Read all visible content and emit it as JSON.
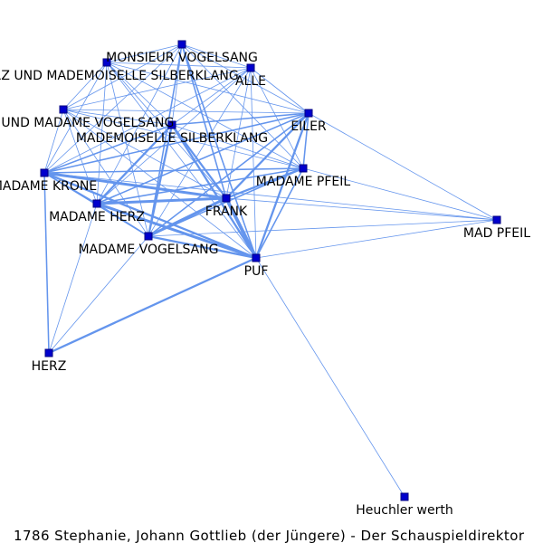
{
  "colors": {
    "edge": "#6495ed",
    "node_fill": "#0000cd",
    "node_stroke": "#000080",
    "background": "#ffffff"
  },
  "caption": "1786 Stephanie, Johann Gottlieb (der Jüngere) - Der Schauspieldirektor",
  "nodes": [
    {
      "id": "monsieur_vogelsang",
      "label": "MONSIEUR VOGELSANG"
    },
    {
      "id": "herz_silberklang",
      "label": "HERZ UND MADEMOISELLE SILBERKLANG"
    },
    {
      "id": "alle",
      "label": "ALLE"
    },
    {
      "id": "krone_vogelsang",
      "label": "KRONE UND MADAME VOGELSANG"
    },
    {
      "id": "mlle_silberklang",
      "label": "MADEMOISELLE SILBERKLANG"
    },
    {
      "id": "eiler",
      "label": "EILER"
    },
    {
      "id": "madame_krone",
      "label": "MADAME KRONE"
    },
    {
      "id": "madame_pfeil",
      "label": "MADAME PFEIL"
    },
    {
      "id": "frank",
      "label": "FRANK"
    },
    {
      "id": "madame_herz",
      "label": "MADAME HERZ"
    },
    {
      "id": "mad_pfeil",
      "label": "MAD PFEIL"
    },
    {
      "id": "madame_vogelsang",
      "label": "MADAME VOGELSANG"
    },
    {
      "id": "puf",
      "label": "PUF"
    },
    {
      "id": "herz",
      "label": "HERZ"
    },
    {
      "id": "heuchler",
      "label": "Heuchler werth"
    }
  ],
  "edges": [
    [
      "frank",
      "puf",
      5
    ],
    [
      "frank",
      "madame_krone",
      4
    ],
    [
      "frank",
      "madame_herz",
      4
    ],
    [
      "frank",
      "madame_vogelsang",
      4
    ],
    [
      "frank",
      "eiler",
      3
    ],
    [
      "frank",
      "mlle_silberklang",
      3
    ],
    [
      "frank",
      "madame_pfeil",
      3
    ],
    [
      "frank",
      "monsieur_vogelsang",
      2
    ],
    [
      "frank",
      "alle",
      1
    ],
    [
      "frank",
      "herz_silberklang",
      1
    ],
    [
      "frank",
      "krone_vogelsang",
      1
    ],
    [
      "frank",
      "mad_pfeil",
      1
    ],
    [
      "puf",
      "madame_herz",
      4
    ],
    [
      "puf",
      "eiler",
      3
    ],
    [
      "puf",
      "mlle_silberklang",
      3
    ],
    [
      "puf",
      "madame_vogelsang",
      3
    ],
    [
      "puf",
      "herz",
      3
    ],
    [
      "puf",
      "madame_krone",
      3
    ],
    [
      "puf",
      "madame_pfeil",
      2
    ],
    [
      "puf",
      "monsieur_vogelsang",
      2
    ],
    [
      "puf",
      "alle",
      1
    ],
    [
      "puf",
      "herz_silberklang",
      1
    ],
    [
      "puf",
      "krone_vogelsang",
      1
    ],
    [
      "puf",
      "mad_pfeil",
      1
    ],
    [
      "puf",
      "heuchler",
      1
    ],
    [
      "eiler",
      "madame_krone",
      2
    ],
    [
      "eiler",
      "madame_herz",
      2
    ],
    [
      "eiler",
      "madame_vogelsang",
      2
    ],
    [
      "eiler",
      "mlle_silberklang",
      2
    ],
    [
      "eiler",
      "madame_pfeil",
      2
    ],
    [
      "eiler",
      "mad_pfeil",
      1
    ],
    [
      "eiler",
      "monsieur_vogelsang",
      1
    ],
    [
      "eiler",
      "alle",
      1
    ],
    [
      "eiler",
      "herz_silberklang",
      1
    ],
    [
      "eiler",
      "krone_vogelsang",
      1
    ],
    [
      "mlle_silberklang",
      "madame_herz",
      3
    ],
    [
      "mlle_silberklang",
      "madame_vogelsang",
      3
    ],
    [
      "mlle_silberklang",
      "madame_krone",
      2
    ],
    [
      "mlle_silberklang",
      "madame_pfeil",
      1
    ],
    [
      "mlle_silberklang",
      "monsieur_vogelsang",
      1
    ],
    [
      "mlle_silberklang",
      "alle",
      1
    ],
    [
      "mlle_silberklang",
      "herz_silberklang",
      1
    ],
    [
      "mlle_silberklang",
      "krone_vogelsang",
      1
    ],
    [
      "madame_krone",
      "madame_herz",
      2
    ],
    [
      "madame_krone",
      "madame_vogelsang",
      2
    ],
    [
      "madame_krone",
      "madame_pfeil",
      2
    ],
    [
      "madame_krone",
      "herz",
      2
    ],
    [
      "madame_krone",
      "monsieur_vogelsang",
      1
    ],
    [
      "madame_krone",
      "alle",
      1
    ],
    [
      "madame_krone",
      "herz_silberklang",
      1
    ],
    [
      "madame_krone",
      "krone_vogelsang",
      1
    ],
    [
      "madame_krone",
      "mad_pfeil",
      1
    ],
    [
      "madame_herz",
      "madame_vogelsang",
      2
    ],
    [
      "madame_herz",
      "madame_pfeil",
      2
    ],
    [
      "madame_herz",
      "herz",
      1
    ],
    [
      "madame_herz",
      "monsieur_vogelsang",
      1
    ],
    [
      "madame_herz",
      "alle",
      1
    ],
    [
      "madame_herz",
      "herz_silberklang",
      1
    ],
    [
      "madame_herz",
      "krone_vogelsang",
      1
    ],
    [
      "madame_vogelsang",
      "madame_pfeil",
      2
    ],
    [
      "madame_vogelsang",
      "herz",
      1
    ],
    [
      "madame_vogelsang",
      "monsieur_vogelsang",
      2
    ],
    [
      "madame_vogelsang",
      "alle",
      1
    ],
    [
      "madame_vogelsang",
      "herz_silberklang",
      1
    ],
    [
      "madame_vogelsang",
      "krone_vogelsang",
      1
    ],
    [
      "madame_vogelsang",
      "mad_pfeil",
      1
    ],
    [
      "madame_pfeil",
      "monsieur_vogelsang",
      1
    ],
    [
      "madame_pfeil",
      "alle",
      1
    ],
    [
      "madame_pfeil",
      "herz_silberklang",
      1
    ],
    [
      "madame_pfeil",
      "krone_vogelsang",
      1
    ],
    [
      "madame_pfeil",
      "mad_pfeil",
      1
    ],
    [
      "monsieur_vogelsang",
      "alle",
      1
    ],
    [
      "monsieur_vogelsang",
      "herz_silberklang",
      1
    ],
    [
      "monsieur_vogelsang",
      "krone_vogelsang",
      1
    ],
    [
      "alle",
      "herz_silberklang",
      1
    ],
    [
      "alle",
      "krone_vogelsang",
      1
    ],
    [
      "herz_silberklang",
      "krone_vogelsang",
      1
    ]
  ]
}
